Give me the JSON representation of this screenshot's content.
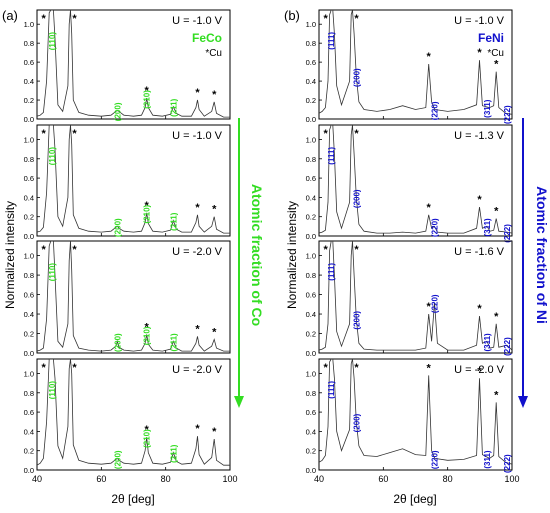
{
  "xlabel": "2θ [deg]",
  "ylabel": "Normalized intensity",
  "xlim": [
    40,
    100
  ],
  "ylim": [
    0,
    1.15
  ],
  "x_ticks": [
    "40",
    "60",
    "80",
    "100"
  ],
  "y_ticks": [
    "0.0",
    "0.2",
    "0.4",
    "0.6",
    "0.8",
    "1.0"
  ],
  "cu_marker": "*",
  "colors": {
    "feco": "#33dd22",
    "feni": "#1111cc",
    "trace": "#333333",
    "frame": "#000000"
  },
  "chart_data": [
    {
      "type": "line",
      "panel_label": "(a)",
      "material": "FeCo",
      "cu_note": "*Cu",
      "side_annotation": "Atomic fraction of Co",
      "peak_positions": [
        44.7,
        65.0,
        74.1,
        82.4,
        89.9,
        95.1
      ],
      "peak_labels": [
        "(110)",
        "(200)",
        "(210)",
        "(211)",
        "",
        ""
      ],
      "cu_peaks": [
        43.3,
        50.4,
        74.1,
        89.9,
        95.1
      ],
      "panels": [
        {
          "voltage": "U = -1.0 V",
          "x": [
            40,
            41,
            42,
            43,
            43.8,
            44.3,
            44.7,
            45.1,
            45.6,
            46.5,
            48,
            49.6,
            50.0,
            50.4,
            50.8,
            51.3,
            53,
            56,
            60,
            63,
            64.5,
            65,
            65.5,
            67,
            70,
            72.5,
            73.6,
            74.1,
            74.6,
            76,
            79,
            81.5,
            82.4,
            83.3,
            85,
            88,
            89.4,
            89.9,
            90.4,
            92,
            94.3,
            95.1,
            95.8,
            98,
            100
          ],
          "y": [
            0.03,
            0.04,
            0.07,
            0.4,
            1.12,
            1.15,
            1.15,
            1.15,
            0.85,
            0.15,
            0.08,
            0.35,
            1.0,
            1.15,
            0.9,
            0.2,
            0.07,
            0.04,
            0.03,
            0.04,
            0.08,
            0.09,
            0.08,
            0.04,
            0.03,
            0.04,
            0.12,
            0.22,
            0.12,
            0.04,
            0.03,
            0.05,
            0.13,
            0.06,
            0.03,
            0.03,
            0.12,
            0.2,
            0.1,
            0.03,
            0.08,
            0.18,
            0.06,
            0.02,
            0.02
          ]
        },
        {
          "voltage": "U = -1.0 V",
          "x": [
            40,
            41,
            42,
            43,
            43.8,
            44.3,
            44.7,
            45.1,
            45.6,
            46.5,
            48,
            49.6,
            50.0,
            50.4,
            50.8,
            51.3,
            53,
            56,
            60,
            63,
            64.5,
            65,
            65.5,
            67,
            70,
            72.5,
            73.6,
            74.1,
            74.6,
            76,
            79,
            81.5,
            82.4,
            83.3,
            85,
            88,
            89.4,
            89.9,
            90.4,
            92,
            94.3,
            95.1,
            95.8,
            98,
            100
          ],
          "y": [
            0.04,
            0.05,
            0.09,
            0.45,
            1.15,
            1.15,
            1.15,
            1.15,
            0.9,
            0.2,
            0.1,
            0.4,
            1.0,
            1.15,
            0.95,
            0.22,
            0.08,
            0.05,
            0.04,
            0.05,
            0.09,
            0.1,
            0.08,
            0.05,
            0.04,
            0.05,
            0.14,
            0.24,
            0.13,
            0.05,
            0.04,
            0.06,
            0.16,
            0.07,
            0.04,
            0.04,
            0.14,
            0.22,
            0.1,
            0.04,
            0.1,
            0.2,
            0.07,
            0.03,
            0.03
          ]
        },
        {
          "voltage": "U = -2.0 V",
          "x": [
            40,
            41,
            42,
            43,
            43.8,
            44.3,
            44.7,
            45.1,
            45.6,
            46.5,
            48,
            49.6,
            50.0,
            50.4,
            50.8,
            51.3,
            53,
            56,
            60,
            63,
            64.5,
            65,
            65.5,
            67,
            70,
            72.5,
            73.6,
            74.1,
            74.6,
            76,
            79,
            81.5,
            82.4,
            83.3,
            85,
            88,
            89.4,
            89.9,
            90.4,
            92,
            94.3,
            95.1,
            95.8,
            98,
            100
          ],
          "y": [
            0.02,
            0.03,
            0.05,
            0.35,
            1.1,
            1.15,
            1.15,
            1.15,
            0.8,
            0.12,
            0.06,
            0.3,
            0.95,
            1.15,
            0.85,
            0.18,
            0.05,
            0.03,
            0.02,
            0.03,
            0.07,
            0.12,
            0.06,
            0.03,
            0.02,
            0.03,
            0.1,
            0.19,
            0.09,
            0.03,
            0.02,
            0.04,
            0.12,
            0.05,
            0.02,
            0.02,
            0.1,
            0.17,
            0.08,
            0.02,
            0.07,
            0.14,
            0.05,
            0.02,
            0.02
          ]
        },
        {
          "voltage": "U = -2.0 V",
          "x": [
            40,
            41,
            42,
            43,
            43.8,
            44.3,
            44.7,
            45.1,
            45.6,
            46.5,
            48,
            49.6,
            50.0,
            50.4,
            50.8,
            51.3,
            53,
            56,
            60,
            63,
            64.5,
            65,
            65.5,
            67,
            70,
            72.5,
            73.6,
            74.1,
            74.6,
            76,
            79,
            81.5,
            82.4,
            83.3,
            85,
            88,
            89.4,
            89.9,
            90.4,
            92,
            94.3,
            95.1,
            95.8,
            98,
            100
          ],
          "y": [
            0.05,
            0.07,
            0.12,
            0.5,
            1.15,
            1.15,
            1.15,
            1.15,
            0.95,
            0.25,
            0.12,
            0.45,
            1.05,
            1.15,
            1.0,
            0.26,
            0.1,
            0.07,
            0.06,
            0.07,
            0.11,
            0.12,
            0.1,
            0.07,
            0.06,
            0.07,
            0.2,
            0.34,
            0.18,
            0.07,
            0.06,
            0.08,
            0.18,
            0.09,
            0.06,
            0.07,
            0.22,
            0.35,
            0.16,
            0.06,
            0.13,
            0.32,
            0.1,
            0.05,
            0.05
          ]
        }
      ]
    },
    {
      "type": "line",
      "panel_label": "(b)",
      "material": "FeNi",
      "cu_note": "*Cu",
      "side_annotation": "Atomic fraction of Ni",
      "peak_positions": [
        43.8,
        51.6,
        75.9,
        92.2,
        98.4
      ],
      "peak_labels": [
        "(111)",
        "(200)",
        "(220)",
        "(311)",
        "(222)"
      ],
      "cu_peaks": [
        43.3,
        50.4,
        74.1,
        89.9,
        95.1
      ],
      "panels": [
        {
          "voltage": "U = -1.0 V",
          "x": [
            40,
            41,
            42,
            42.8,
            43.3,
            43.8,
            44.3,
            44.8,
            45.5,
            47,
            49.5,
            50.0,
            50.4,
            50.9,
            51.6,
            52.4,
            54,
            58,
            62,
            66,
            70,
            73.2,
            74.1,
            75.0,
            76,
            80,
            85,
            89.0,
            89.9,
            90.8,
            93,
            94.3,
            95.1,
            95.9,
            98,
            100
          ],
          "y": [
            0.06,
            0.08,
            0.12,
            0.4,
            1.1,
            1.15,
            1.15,
            0.9,
            0.35,
            0.15,
            0.4,
            1.1,
            1.15,
            0.9,
            0.45,
            0.18,
            0.1,
            0.08,
            0.1,
            0.14,
            0.1,
            0.12,
            0.58,
            0.18,
            0.1,
            0.08,
            0.1,
            0.15,
            0.62,
            0.14,
            0.12,
            0.14,
            0.5,
            0.12,
            0.06,
            0.05
          ]
        },
        {
          "voltage": "U = -1.3 V",
          "x": [
            40,
            41,
            42,
            42.8,
            43.3,
            43.8,
            44.3,
            44.8,
            45.5,
            47,
            49.5,
            50.0,
            50.4,
            50.9,
            51.6,
            52.4,
            54,
            58,
            62,
            66,
            70,
            73.2,
            74.1,
            75.0,
            75.9,
            76.8,
            80,
            85,
            89.0,
            89.9,
            90.8,
            92.2,
            93.2,
            94.3,
            95.1,
            95.9,
            98.4,
            100
          ],
          "y": [
            0.03,
            0.04,
            0.06,
            0.35,
            1.1,
            1.15,
            1.15,
            0.85,
            0.25,
            0.08,
            0.35,
            1.05,
            1.15,
            0.85,
            0.4,
            0.12,
            0.05,
            0.03,
            0.03,
            0.04,
            0.03,
            0.05,
            0.22,
            0.08,
            0.1,
            0.04,
            0.03,
            0.03,
            0.08,
            0.3,
            0.08,
            0.1,
            0.05,
            0.06,
            0.18,
            0.05,
            0.04,
            0.03
          ]
        },
        {
          "voltage": "U = -1.6 V",
          "x": [
            40,
            41,
            42,
            42.8,
            43.3,
            43.8,
            44.3,
            44.8,
            45.5,
            47,
            49.5,
            50.0,
            50.4,
            50.9,
            51.6,
            52.4,
            54,
            58,
            62,
            66,
            70,
            73.2,
            74.1,
            75.0,
            75.9,
            76.8,
            80,
            85,
            89.0,
            89.9,
            90.8,
            92.2,
            93.2,
            94.3,
            95.1,
            95.9,
            98.4,
            100
          ],
          "y": [
            0.03,
            0.04,
            0.06,
            0.3,
            1.05,
            1.15,
            1.15,
            0.8,
            0.22,
            0.07,
            0.3,
            1.0,
            1.15,
            0.8,
            0.35,
            0.1,
            0.04,
            0.03,
            0.03,
            0.03,
            0.03,
            0.05,
            0.4,
            0.12,
            0.52,
            0.1,
            0.03,
            0.03,
            0.08,
            0.38,
            0.1,
            0.12,
            0.05,
            0.06,
            0.3,
            0.06,
            0.08,
            0.03
          ]
        },
        {
          "voltage": "U = -2.0 V",
          "x": [
            40,
            41,
            42,
            42.8,
            43.3,
            43.8,
            44.3,
            44.8,
            45.5,
            47,
            49.5,
            50.0,
            50.4,
            50.9,
            51.6,
            52.4,
            54,
            58,
            62,
            66,
            70,
            73.2,
            74.1,
            75.0,
            76,
            80,
            85,
            89.0,
            89.9,
            90.8,
            93,
            94.3,
            95.1,
            95.9,
            98,
            100
          ],
          "y": [
            0.08,
            0.1,
            0.15,
            0.45,
            1.12,
            1.15,
            1.15,
            0.95,
            0.4,
            0.2,
            0.42,
            1.1,
            1.15,
            0.95,
            0.5,
            0.25,
            0.15,
            0.14,
            0.18,
            0.22,
            0.16,
            0.15,
            0.98,
            0.2,
            0.12,
            0.1,
            0.11,
            0.15,
            0.95,
            0.16,
            0.12,
            0.15,
            0.7,
            0.14,
            0.08,
            0.06
          ]
        }
      ]
    }
  ]
}
